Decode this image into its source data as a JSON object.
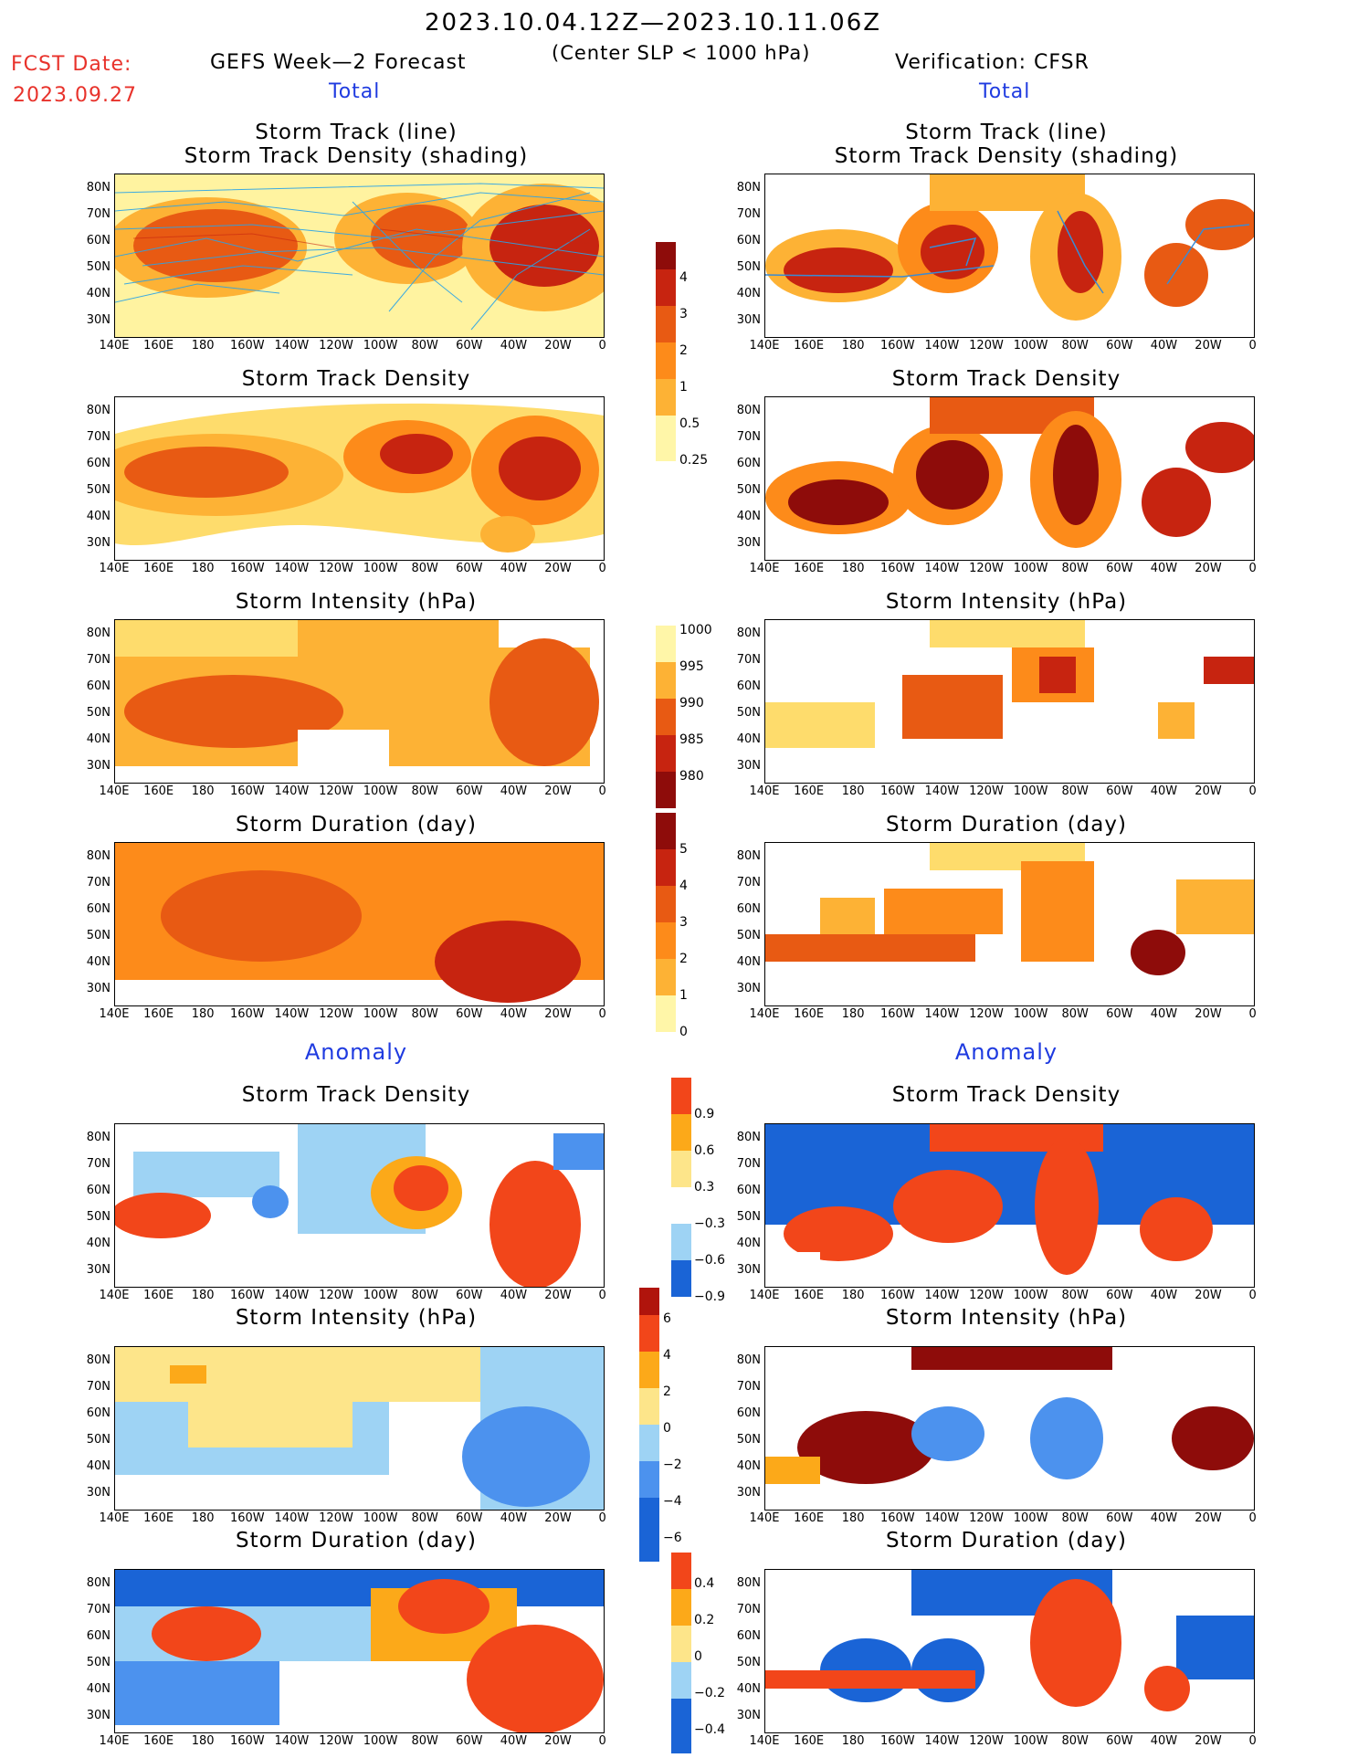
{
  "header": {
    "date_range": "2023.10.04.12Z—2023.10.11.06Z",
    "criterion": "(Center SLP < 1000 hPa)",
    "fcst_label": "FCST Date:",
    "fcst_date": "2023.09.27",
    "left_model": "GEFS Week—2 Forecast",
    "right_model": "Verification: CFSR",
    "left_total": "Total",
    "right_total": "Total",
    "left_anomaly": "Anomaly",
    "right_anomaly": "Anomaly"
  },
  "panels": [
    {
      "title1": "Storm Track (line)",
      "title2": "Storm Track Density (shading)"
    },
    {
      "title1": "Storm Track Density",
      "title2": ""
    },
    {
      "title1": "Storm Intensity (hPa)",
      "title2": ""
    },
    {
      "title1": "Storm Duration (day)",
      "title2": ""
    },
    {
      "title1": "Storm Track Density",
      "title2": ""
    },
    {
      "title1": "Storm Intensity (hPa)",
      "title2": ""
    },
    {
      "title1": "Storm Duration (day)",
      "title2": ""
    }
  ],
  "axes": {
    "lat_labels": [
      "80N",
      "70N",
      "60N",
      "50N",
      "40N",
      "30N"
    ],
    "lon_labels": [
      "140E",
      "160E",
      "180",
      "160W",
      "140W",
      "120W",
      "100W",
      "80W",
      "60W",
      "40W",
      "20W",
      "0"
    ]
  },
  "colorbars": {
    "density": [
      "4",
      "3",
      "2",
      "1",
      "0.5",
      "0.25"
    ],
    "intensity": [
      "1000",
      "995",
      "990",
      "985",
      "980"
    ],
    "duration": [
      "5",
      "4",
      "3",
      "2",
      "1",
      "0"
    ],
    "density_anom": [
      "0.9",
      "0.6",
      "0.3",
      "−0.3",
      "−0.6",
      "−0.9"
    ],
    "intensity_anom": [
      "6",
      "4",
      "2",
      "0",
      "−2",
      "−4",
      "−6"
    ],
    "duration_anom": [
      "0.4",
      "0.2",
      "0",
      "−0.2",
      "−0.4"
    ]
  },
  "colors": {
    "total_scale": [
      "#fff6a8",
      "#fedc6c",
      "#fdb235",
      "#fd8b1a",
      "#e85a13",
      "#c72410",
      "#8e0c0a"
    ],
    "anom_scale": [
      "#1a64d6",
      "#4c92ee",
      "#9ed3f4",
      "#ffffff",
      "#fde58a",
      "#fca919",
      "#f2461a"
    ]
  }
}
